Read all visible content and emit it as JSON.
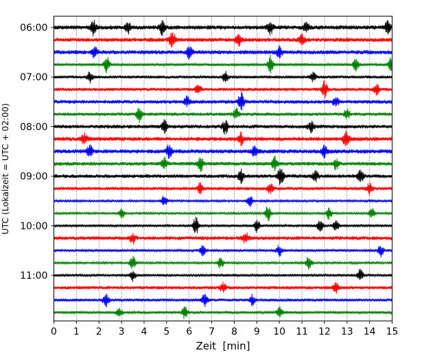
{
  "chart_data": {
    "type": "line",
    "title": "",
    "xlabel": "Zeit  [min]",
    "ylabel": "UTC (Lokalzeit = UTC + 02:00)",
    "xlim": [
      0,
      15
    ],
    "x_ticks": [
      "0",
      "1",
      "2",
      "3",
      "4",
      "5",
      "6",
      "7",
      "8",
      "9",
      "10",
      "11",
      "12",
      "13",
      "14",
      "15"
    ],
    "y_ticks": [
      "06:00",
      "07:00",
      "08:00",
      "09:00",
      "10:00",
      "11:00"
    ],
    "grid": "vertical dotted",
    "series_colors": [
      "#000000",
      "#ff0000",
      "#0000ff",
      "#008000"
    ],
    "traces": [
      {
        "start": "06:00",
        "color": "#000000",
        "amp": 1.0,
        "bursts": [
          [
            1.75,
            1.6
          ],
          [
            3.3,
            1.3
          ],
          [
            4.8,
            1.5
          ],
          [
            9.6,
            1.6
          ],
          [
            11.2,
            1.2
          ],
          [
            14.8,
            1.3
          ]
        ]
      },
      {
        "start": "06:15",
        "color": "#ff0000",
        "amp": 1.0,
        "bursts": [
          [
            5.25,
            2.0
          ],
          [
            8.2,
            1.3
          ],
          [
            11.0,
            1.2
          ]
        ]
      },
      {
        "start": "06:30",
        "color": "#0000ff",
        "amp": 1.0,
        "bursts": [
          [
            1.8,
            1.2
          ],
          [
            6.0,
            1.3
          ],
          [
            10.0,
            1.2
          ]
        ]
      },
      {
        "start": "06:45",
        "color": "#008000",
        "amp": 0.6,
        "bursts": [
          [
            2.35,
            1.8
          ],
          [
            9.6,
            2.0
          ],
          [
            13.4,
            1.5
          ],
          [
            14.95,
            1.6
          ]
        ]
      },
      {
        "start": "07:00",
        "color": "#000000",
        "amp": 0.7,
        "bursts": [
          [
            1.6,
            1.2
          ],
          [
            7.6,
            1.3
          ],
          [
            11.5,
            1.2
          ]
        ]
      },
      {
        "start": "07:15",
        "color": "#ff0000",
        "amp": 0.8,
        "bursts": [
          [
            6.4,
            1.2
          ],
          [
            12.0,
            1.9
          ],
          [
            14.3,
            1.2
          ]
        ]
      },
      {
        "start": "07:30",
        "color": "#0000ff",
        "amp": 0.9,
        "bursts": [
          [
            8.3,
            2.2
          ],
          [
            5.9,
            1.2
          ],
          [
            12.5,
            1.1
          ]
        ]
      },
      {
        "start": "07:45",
        "color": "#008000",
        "amp": 0.8,
        "bursts": [
          [
            3.8,
            1.9
          ],
          [
            8.1,
            1.3
          ],
          [
            13.0,
            1.2
          ]
        ]
      },
      {
        "start": "08:00",
        "color": "#000000",
        "amp": 0.9,
        "bursts": [
          [
            4.9,
            1.3
          ],
          [
            7.6,
            1.6
          ],
          [
            11.4,
            1.2
          ]
        ]
      },
      {
        "start": "08:15",
        "color": "#ff0000",
        "amp": 1.0,
        "bursts": [
          [
            1.35,
            1.3
          ],
          [
            8.3,
            1.3
          ],
          [
            12.95,
            2.1
          ]
        ]
      },
      {
        "start": "08:30",
        "color": "#0000ff",
        "amp": 1.0,
        "bursts": [
          [
            1.6,
            1.3
          ],
          [
            5.1,
            1.5
          ],
          [
            8.9,
            1.3
          ],
          [
            12.0,
            1.4
          ]
        ]
      },
      {
        "start": "08:45",
        "color": "#008000",
        "amp": 0.9,
        "bursts": [
          [
            4.9,
            1.3
          ],
          [
            6.5,
            1.6
          ],
          [
            9.8,
            1.5
          ],
          [
            12.5,
            1.3
          ]
        ]
      },
      {
        "start": "09:00",
        "color": "#000000",
        "amp": 0.9,
        "bursts": [
          [
            8.3,
            1.6
          ],
          [
            10.05,
            2.3
          ],
          [
            11.6,
            1.3
          ],
          [
            13.6,
            1.4
          ]
        ]
      },
      {
        "start": "09:15",
        "color": "#ff0000",
        "amp": 0.8,
        "bursts": [
          [
            6.5,
            1.3
          ],
          [
            9.6,
            1.3
          ],
          [
            14.0,
            1.2
          ]
        ]
      },
      {
        "start": "09:30",
        "color": "#0000ff",
        "amp": 0.5,
        "bursts": [
          [
            4.9,
            1.3
          ],
          [
            8.7,
            1.3
          ]
        ]
      },
      {
        "start": "09:45",
        "color": "#008000",
        "amp": 0.5,
        "bursts": [
          [
            3.0,
            1.2
          ],
          [
            9.5,
            2.0
          ],
          [
            12.2,
            1.4
          ],
          [
            14.1,
            1.3
          ]
        ]
      },
      {
        "start": "10:00",
        "color": "#000000",
        "amp": 0.6,
        "bursts": [
          [
            6.3,
            2.2
          ],
          [
            9.0,
            1.4
          ],
          [
            11.8,
            1.5
          ],
          [
            12.5,
            1.3
          ]
        ]
      },
      {
        "start": "10:15",
        "color": "#ff0000",
        "amp": 0.9,
        "bursts": [
          [
            3.5,
            1.2
          ],
          [
            8.5,
            1.3
          ]
        ]
      },
      {
        "start": "10:30",
        "color": "#0000ff",
        "amp": 0.6,
        "bursts": [
          [
            6.6,
            1.3
          ],
          [
            10.0,
            1.3
          ],
          [
            14.5,
            1.3
          ]
        ]
      },
      {
        "start": "10:45",
        "color": "#008000",
        "amp": 0.5,
        "bursts": [
          [
            3.5,
            1.6
          ],
          [
            7.4,
            1.5
          ],
          [
            11.3,
            1.8
          ]
        ]
      },
      {
        "start": "11:00",
        "color": "#000000",
        "amp": 0.6,
        "bursts": [
          [
            3.5,
            1.2
          ],
          [
            13.6,
            1.6
          ]
        ]
      },
      {
        "start": "11:15",
        "color": "#ff0000",
        "amp": 0.8,
        "bursts": [
          [
            7.5,
            1.2
          ],
          [
            12.5,
            1.2
          ]
        ]
      },
      {
        "start": "11:30",
        "color": "#0000ff",
        "amp": 0.7,
        "bursts": [
          [
            2.3,
            1.8
          ],
          [
            6.7,
            1.6
          ],
          [
            8.8,
            1.2
          ]
        ]
      },
      {
        "start": "11:45",
        "color": "#008000",
        "amp": 0.6,
        "bursts": [
          [
            2.9,
            1.2
          ],
          [
            5.8,
            1.4
          ],
          [
            10.0,
            1.2
          ]
        ]
      }
    ]
  }
}
